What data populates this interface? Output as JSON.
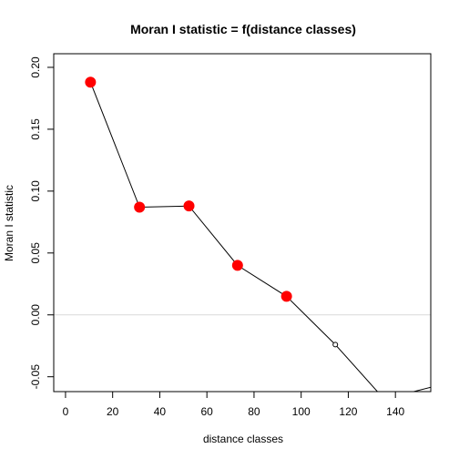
{
  "chart_data": {
    "type": "line",
    "title": "Moran I statistic = f(distance classes)",
    "xlabel": "distance classes",
    "ylabel": "Moran I statistic",
    "xlim": [
      -5,
      155
    ],
    "ylim": [
      -0.062,
      0.211
    ],
    "x_ticks": [
      0,
      20,
      40,
      60,
      80,
      100,
      120,
      140
    ],
    "y_ticks": [
      -0.05,
      0.0,
      0.05,
      0.1,
      0.15,
      0.2
    ],
    "x_tick_labels": [
      "0",
      "20",
      "40",
      "60",
      "80",
      "100",
      "120",
      "140"
    ],
    "y_tick_labels": [
      "-0.05",
      "0.00",
      "0.05",
      "0.10",
      "0.15",
      "0.20"
    ],
    "reference_line_y": 0,
    "series": [
      {
        "x": [
          10.6,
          31.4,
          52.4,
          73.0,
          93.8,
          114.5,
          135.2,
          156.0
        ],
        "y": [
          0.188,
          0.087,
          0.088,
          0.04,
          0.015,
          -0.024,
          -0.068,
          -0.058
        ],
        "significant": [
          true,
          true,
          true,
          true,
          true,
          false,
          false,
          false
        ]
      }
    ],
    "colors": {
      "significant": "#ff0000",
      "line": "#000000",
      "reference": "#d9d9d9"
    }
  }
}
